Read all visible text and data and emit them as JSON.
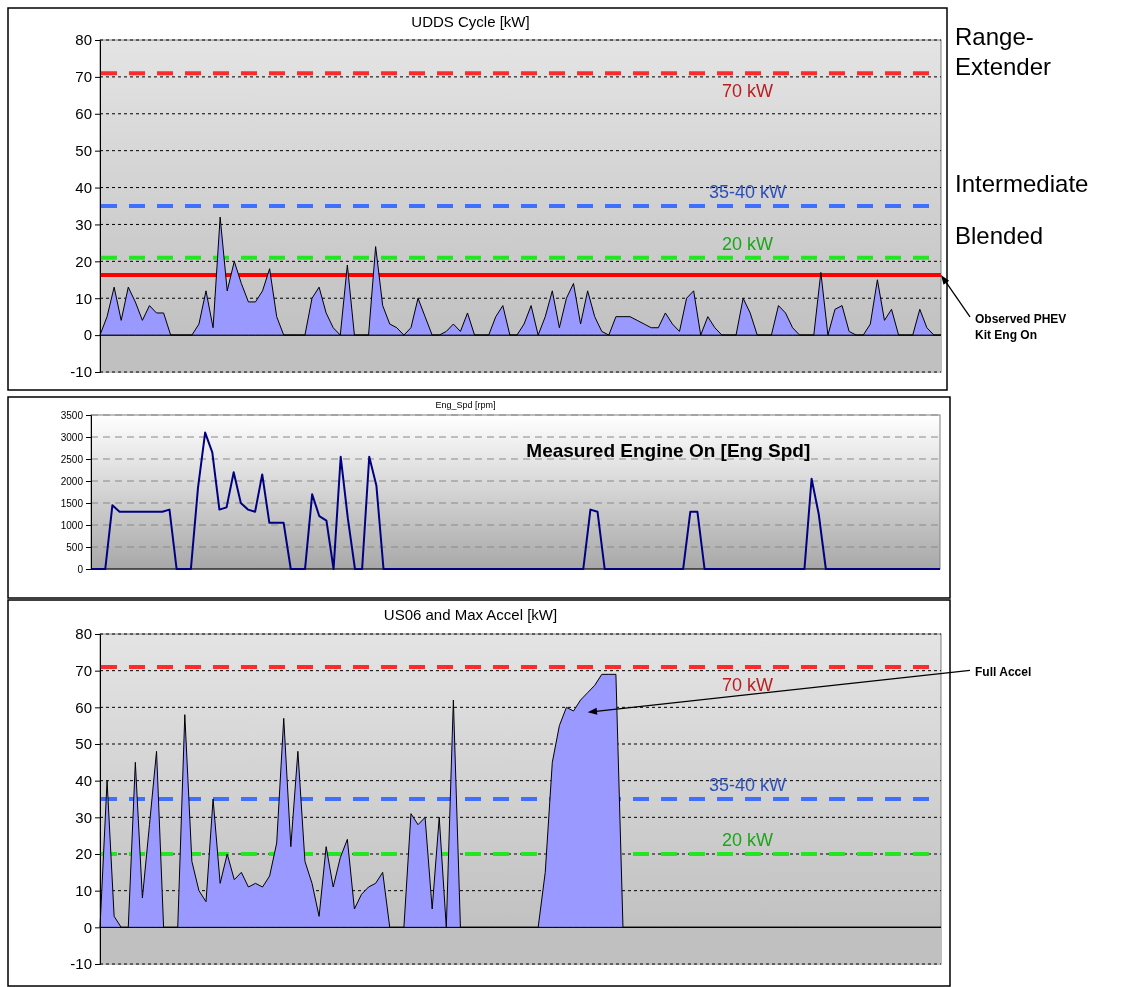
{
  "chart_data": [
    {
      "type": "area",
      "title": "UDDS Cycle [kW]",
      "categories": [
        null,
        null,
        null,
        null,
        null,
        null,
        null,
        null,
        null,
        null,
        null,
        null,
        null,
        null,
        null,
        null,
        null,
        null,
        null,
        null,
        null,
        null,
        null,
        null,
        null,
        null,
        null,
        null,
        null,
        null,
        null,
        null,
        null,
        null,
        null,
        null,
        null,
        null,
        null,
        null,
        null,
        null,
        null,
        null,
        null,
        null,
        null,
        null,
        null,
        null,
        null,
        null,
        null,
        null,
        null,
        null,
        null,
        null,
        null,
        null,
        null,
        null,
        null,
        null,
        null,
        null,
        null,
        null,
        null,
        null,
        null,
        null,
        null,
        null,
        null,
        null,
        null,
        null,
        null,
        null,
        null,
        null,
        null,
        null,
        null,
        null,
        null,
        null,
        null,
        null,
        null,
        null,
        null,
        null,
        null,
        null,
        null,
        null,
        null,
        null,
        null,
        null,
        null,
        null,
        null,
        null,
        null,
        null,
        null,
        null,
        null,
        null,
        null,
        null,
        null,
        null,
        null,
        null,
        null,
        null
      ],
      "series": [
        {
          "color": "#9999ff",
          "values": [
            0,
            5,
            13,
            4,
            13,
            9,
            4,
            8,
            6,
            6,
            0,
            0,
            0,
            0,
            3,
            12,
            2,
            32,
            12,
            20,
            14,
            9,
            9,
            12,
            18,
            5,
            0,
            0,
            0,
            0,
            10,
            13,
            6,
            2,
            0,
            19,
            0,
            0,
            0,
            24,
            8,
            3,
            2,
            0,
            2,
            10,
            5,
            0,
            0,
            1,
            3,
            1,
            6,
            0,
            0,
            0,
            5,
            8,
            0,
            0,
            3,
            8,
            0,
            5,
            12,
            2,
            10,
            14,
            3,
            12,
            5,
            1,
            0,
            5,
            5,
            5,
            4,
            3,
            2,
            2,
            6,
            3,
            1,
            10,
            12,
            0,
            5,
            2,
            0,
            0,
            0,
            10,
            6,
            0,
            0,
            0,
            8,
            6,
            2,
            0,
            0,
            0,
            17,
            0,
            7,
            8,
            1,
            0,
            0,
            3,
            15,
            4,
            7,
            0,
            0,
            0,
            7,
            2,
            0,
            0
          ]
        }
      ],
      "ylim": [
        -10,
        80
      ],
      "yticks": [
        -10,
        0,
        10,
        20,
        30,
        40,
        50,
        60,
        70,
        80
      ],
      "grid": "y",
      "ref_lines": [
        {
          "axis": "y",
          "value": 71,
          "label": "70 kW",
          "color": "#ff2a2a",
          "line_style": "dashed"
        },
        {
          "axis": "y",
          "value": 35,
          "label": "35-40 kW",
          "color": "#3f6fff",
          "line_style": "dashed"
        },
        {
          "axis": "y",
          "value": 21,
          "label": "20 kW",
          "color": "#22e622",
          "line_style": "dashed"
        },
        {
          "axis": "y",
          "value": 16.3,
          "color": "#ff0000",
          "line_style": "solid"
        }
      ],
      "annotations": [
        "Range-Extender",
        "Intermediate",
        "Blended",
        "Observed PHEV Kit Eng On"
      ]
    },
    {
      "type": "line",
      "title": "Eng_Spd [rpm]",
      "categories": [
        null,
        null,
        null,
        null,
        null,
        null,
        null,
        null,
        null,
        null,
        null,
        null,
        null,
        null,
        null,
        null,
        null,
        null,
        null,
        null,
        null,
        null,
        null,
        null,
        null,
        null,
        null,
        null,
        null,
        null,
        null,
        null,
        null,
        null,
        null,
        null,
        null,
        null,
        null,
        null,
        null,
        null,
        null,
        null,
        null,
        null,
        null,
        null,
        null,
        null,
        null,
        null,
        null,
        null,
        null,
        null,
        null,
        null,
        null,
        null,
        null,
        null,
        null,
        null,
        null,
        null,
        null,
        null,
        null,
        null,
        null,
        null,
        null,
        null,
        null,
        null,
        null,
        null,
        null,
        null,
        null,
        null,
        null,
        null,
        null,
        null,
        null,
        null,
        null,
        null,
        null,
        null,
        null,
        null,
        null,
        null,
        null,
        null,
        null,
        null,
        null,
        null,
        null,
        null,
        null,
        null,
        null,
        null,
        null,
        null,
        null,
        null,
        null,
        null,
        null,
        null,
        null,
        null,
        null,
        null
      ],
      "series": [
        {
          "color": "#000080",
          "values": [
            0,
            0,
            0,
            1450,
            1300,
            1300,
            1300,
            1300,
            1300,
            1300,
            1300,
            1350,
            0,
            0,
            0,
            1850,
            3100,
            2650,
            1350,
            1400,
            2200,
            1500,
            1350,
            1300,
            2150,
            1050,
            1050,
            1050,
            0,
            0,
            0,
            1700,
            1200,
            1100,
            0,
            2550,
            1150,
            0,
            0,
            2550,
            1900,
            0,
            0,
            0,
            0,
            0,
            0,
            0,
            0,
            0,
            0,
            0,
            0,
            0,
            0,
            0,
            0,
            0,
            0,
            0,
            0,
            0,
            0,
            0,
            0,
            0,
            0,
            0,
            0,
            0,
            1350,
            1300,
            0,
            0,
            0,
            0,
            0,
            0,
            0,
            0,
            0,
            0,
            0,
            0,
            1300,
            1300,
            0,
            0,
            0,
            0,
            0,
            0,
            0,
            0,
            0,
            0,
            0,
            0,
            0,
            0,
            0,
            2050,
            1250,
            0,
            0,
            0,
            0,
            0,
            0,
            0,
            0,
            0,
            0,
            0,
            0,
            0,
            0,
            0,
            0,
            0
          ]
        }
      ],
      "ylim": [
        0,
        3500
      ],
      "yticks": [
        0,
        500,
        1000,
        1500,
        2000,
        2500,
        3000,
        3500
      ],
      "grid": "y",
      "annotations": [
        "Measured Engine On [Eng Spd]"
      ]
    },
    {
      "type": "area",
      "title": "US06 and Max Accel [kW]",
      "categories": [
        null,
        null,
        null,
        null,
        null,
        null,
        null,
        null,
        null,
        null,
        null,
        null,
        null,
        null,
        null,
        null,
        null,
        null,
        null,
        null,
        null,
        null,
        null,
        null,
        null,
        null,
        null,
        null,
        null,
        null,
        null,
        null,
        null,
        null,
        null,
        null,
        null,
        null,
        null,
        null,
        null,
        null,
        null,
        null,
        null,
        null,
        null,
        null,
        null,
        null,
        null,
        null,
        null,
        null,
        null,
        null,
        null,
        null,
        null,
        null,
        null,
        null,
        null,
        null,
        null,
        null,
        null,
        null,
        null,
        null,
        null,
        null,
        null,
        null,
        null,
        null,
        null,
        null,
        null,
        null,
        null,
        null,
        null,
        null,
        null,
        null,
        null,
        null,
        null,
        null,
        null,
        null,
        null,
        null,
        null,
        null,
        null,
        null,
        null,
        null,
        null,
        null,
        null,
        null,
        null,
        null,
        null,
        null,
        null,
        null,
        null,
        null,
        null,
        null,
        null,
        null,
        null,
        null,
        null,
        null
      ],
      "series": [
        {
          "color": "#9999ff",
          "values": [
            0,
            40,
            3,
            0,
            0,
            45,
            8,
            28,
            48,
            0,
            0,
            0,
            58,
            18,
            10,
            7,
            35,
            12,
            20,
            13,
            15,
            11,
            12,
            11,
            14,
            23,
            57,
            22,
            48,
            18,
            12,
            3,
            22,
            11,
            19,
            24,
            5,
            9,
            11,
            12,
            15,
            0,
            0,
            0,
            31,
            28,
            30,
            5,
            30,
            0,
            62,
            0,
            0,
            0,
            0,
            0,
            0,
            0,
            0,
            0,
            0,
            0,
            0,
            15,
            45,
            55,
            60,
            59,
            62,
            64,
            66,
            69,
            69,
            69,
            0,
            0,
            0,
            0,
            0,
            0,
            0,
            0,
            0,
            0,
            0,
            0,
            0,
            0,
            0,
            0,
            0,
            0,
            0,
            0,
            0,
            0,
            0,
            0,
            0,
            0,
            0,
            0,
            0,
            0,
            0,
            0,
            0,
            0,
            0,
            0,
            0,
            0,
            0,
            0,
            0,
            0,
            0,
            0,
            0,
            0
          ]
        }
      ],
      "ylim": [
        -10,
        80
      ],
      "yticks": [
        -10,
        0,
        10,
        20,
        30,
        40,
        50,
        60,
        70,
        80
      ],
      "grid": "y",
      "ref_lines": [
        {
          "axis": "y",
          "value": 71,
          "label": "70 kW",
          "color": "#ff2a2a",
          "line_style": "dashed"
        },
        {
          "axis": "y",
          "value": 35,
          "label": "35-40 kW",
          "color": "#3f6fff",
          "line_style": "dashed"
        },
        {
          "axis": "y",
          "value": 20,
          "label": "20 kW",
          "color": "#22e622",
          "line_style": "dashed"
        }
      ],
      "annotations": [
        "Full Accel"
      ]
    }
  ]
}
